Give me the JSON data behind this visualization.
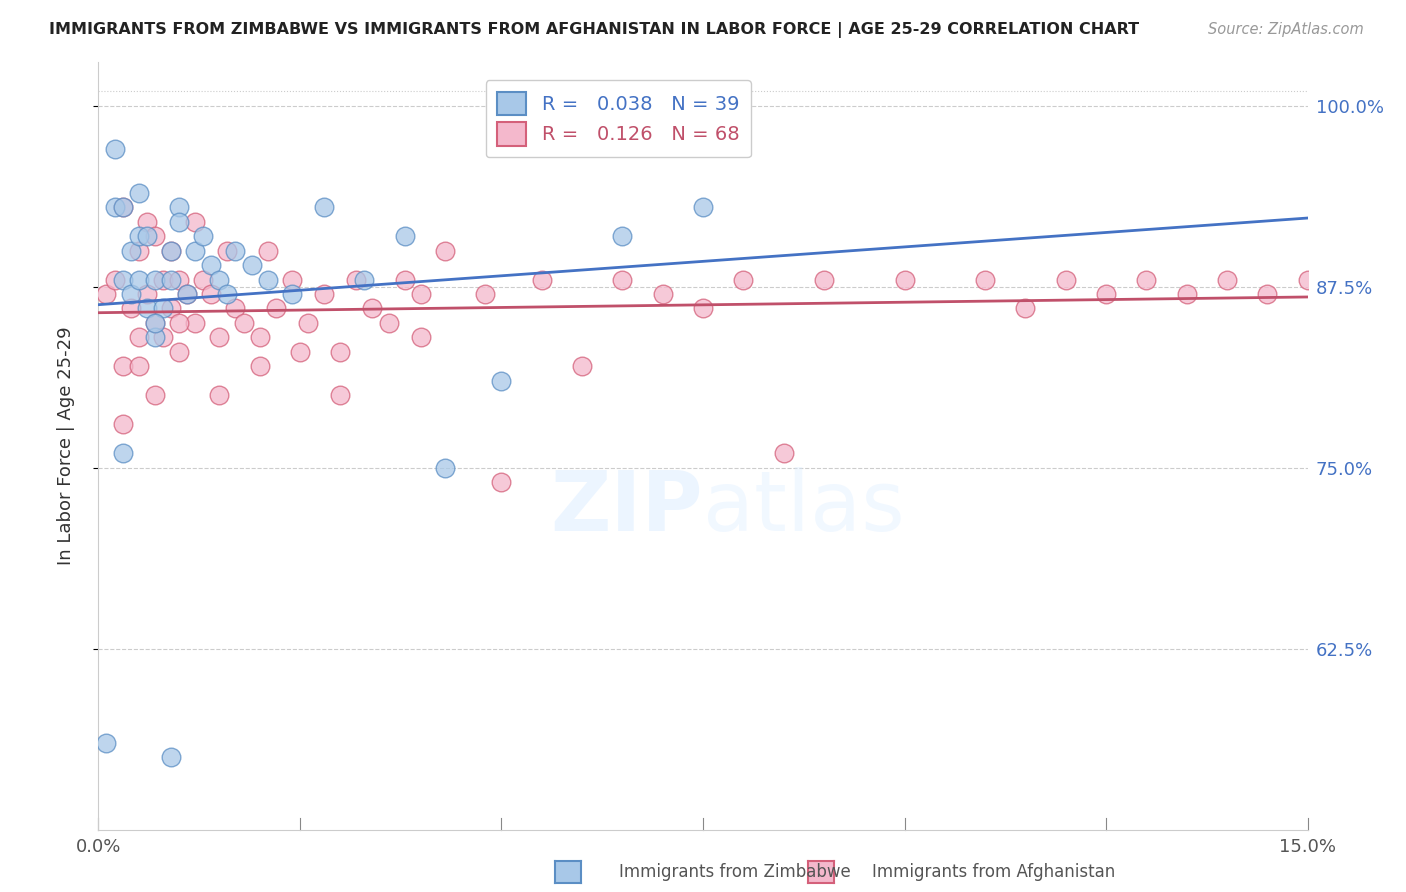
{
  "title": "IMMIGRANTS FROM ZIMBABWE VS IMMIGRANTS FROM AFGHANISTAN IN LABOR FORCE | AGE 25-29 CORRELATION CHART",
  "source": "Source: ZipAtlas.com",
  "ylabel": "In Labor Force | Age 25-29",
  "xlim": [
    0.0,
    0.15
  ],
  "ylim": [
    0.5,
    1.03
  ],
  "yticks": [
    0.625,
    0.75,
    0.875,
    1.0
  ],
  "ytick_labels": [
    "62.5%",
    "75.0%",
    "87.5%",
    "100.0%"
  ],
  "xtick_left_label": "0.0%",
  "xtick_right_label": "15.0%",
  "R_zimbabwe": 0.038,
  "N_zimbabwe": 39,
  "R_afghanistan": 0.126,
  "N_afghanistan": 68,
  "color_zimbabwe": "#a8c8e8",
  "color_afghanistan": "#f4b8cc",
  "edge_color_zimbabwe": "#5b8ec4",
  "edge_color_afghanistan": "#d4607a",
  "line_color_zimbabwe": "#4472c4",
  "line_color_afghanistan": "#c0506a",
  "background_color": "#ffffff",
  "zimbabwe_x": [
    0.001,
    0.002,
    0.002,
    0.003,
    0.003,
    0.004,
    0.004,
    0.005,
    0.005,
    0.005,
    0.006,
    0.006,
    0.007,
    0.007,
    0.008,
    0.009,
    0.009,
    0.01,
    0.01,
    0.011,
    0.012,
    0.013,
    0.014,
    0.015,
    0.016,
    0.017,
    0.019,
    0.021,
    0.024,
    0.028,
    0.033,
    0.038,
    0.043,
    0.05,
    0.065,
    0.075,
    0.009,
    0.003,
    0.007
  ],
  "zimbabwe_y": [
    0.56,
    0.93,
    0.97,
    0.88,
    0.93,
    0.87,
    0.9,
    0.88,
    0.91,
    0.94,
    0.86,
    0.91,
    0.84,
    0.88,
    0.86,
    0.9,
    0.88,
    0.93,
    0.92,
    0.87,
    0.9,
    0.91,
    0.89,
    0.88,
    0.87,
    0.9,
    0.89,
    0.88,
    0.87,
    0.93,
    0.88,
    0.91,
    0.75,
    0.81,
    0.91,
    0.93,
    0.55,
    0.76,
    0.85
  ],
  "afghanistan_x": [
    0.001,
    0.002,
    0.003,
    0.003,
    0.004,
    0.005,
    0.005,
    0.006,
    0.006,
    0.007,
    0.007,
    0.008,
    0.008,
    0.009,
    0.009,
    0.01,
    0.01,
    0.011,
    0.012,
    0.012,
    0.013,
    0.014,
    0.015,
    0.016,
    0.017,
    0.018,
    0.02,
    0.021,
    0.022,
    0.024,
    0.026,
    0.028,
    0.03,
    0.032,
    0.034,
    0.036,
    0.038,
    0.04,
    0.043,
    0.048,
    0.05,
    0.055,
    0.06,
    0.065,
    0.07,
    0.075,
    0.08,
    0.085,
    0.09,
    0.1,
    0.11,
    0.115,
    0.12,
    0.125,
    0.13,
    0.135,
    0.14,
    0.145,
    0.15,
    0.003,
    0.005,
    0.007,
    0.01,
    0.015,
    0.02,
    0.025,
    0.03,
    0.04
  ],
  "afghanistan_y": [
    0.87,
    0.88,
    0.82,
    0.93,
    0.86,
    0.84,
    0.9,
    0.87,
    0.92,
    0.85,
    0.91,
    0.84,
    0.88,
    0.86,
    0.9,
    0.83,
    0.88,
    0.87,
    0.85,
    0.92,
    0.88,
    0.87,
    0.84,
    0.9,
    0.86,
    0.85,
    0.84,
    0.9,
    0.86,
    0.88,
    0.85,
    0.87,
    0.83,
    0.88,
    0.86,
    0.85,
    0.88,
    0.87,
    0.9,
    0.87,
    0.74,
    0.88,
    0.82,
    0.88,
    0.87,
    0.86,
    0.88,
    0.76,
    0.88,
    0.88,
    0.88,
    0.86,
    0.88,
    0.87,
    0.88,
    0.87,
    0.88,
    0.87,
    0.88,
    0.78,
    0.82,
    0.8,
    0.85,
    0.8,
    0.82,
    0.83,
    0.8,
    0.84
  ]
}
